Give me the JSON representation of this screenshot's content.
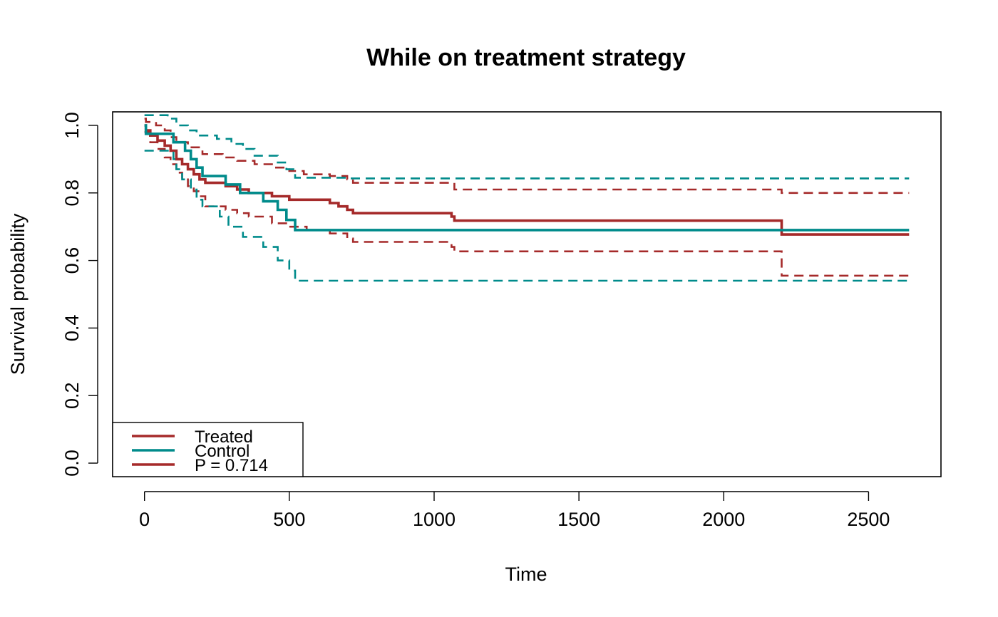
{
  "chart_data": {
    "type": "line",
    "title": "While on treatment strategy",
    "xlabel": "Time",
    "ylabel": "Survival probability",
    "xlim": [
      -110,
      2750
    ],
    "ylim": [
      -0.04,
      1.04
    ],
    "x_ticks": [
      0,
      500,
      1000,
      1500,
      2000,
      2500
    ],
    "y_ticks": [
      0.0,
      0.2,
      0.4,
      0.6,
      0.8,
      1.0
    ],
    "y_tick_labels": [
      "0.0",
      "0.2",
      "0.4",
      "0.6",
      "0.8",
      "1.0"
    ],
    "grid": false,
    "legend_position": "bottom-left",
    "legend": [
      "Treated",
      "Control",
      "P = 0.714"
    ],
    "colors": {
      "treated": "#A52A2A",
      "control": "#008B8B"
    },
    "series": [
      {
        "name": "Treated",
        "color": "#A52A2A",
        "style": "solid",
        "steps": [
          [
            0,
            1.0
          ],
          [
            5,
            0.985
          ],
          [
            20,
            0.97
          ],
          [
            45,
            0.955
          ],
          [
            70,
            0.94
          ],
          [
            90,
            0.925
          ],
          [
            110,
            0.9
          ],
          [
            130,
            0.885
          ],
          [
            150,
            0.87
          ],
          [
            170,
            0.855
          ],
          [
            190,
            0.84
          ],
          [
            210,
            0.83
          ],
          [
            280,
            0.82
          ],
          [
            320,
            0.81
          ],
          [
            360,
            0.8
          ],
          [
            440,
            0.79
          ],
          [
            500,
            0.78
          ],
          [
            640,
            0.77
          ],
          [
            670,
            0.76
          ],
          [
            700,
            0.75
          ],
          [
            720,
            0.74
          ],
          [
            1060,
            0.73
          ],
          [
            1070,
            0.718
          ],
          [
            2200,
            0.677
          ],
          [
            2640,
            0.677
          ]
        ]
      },
      {
        "name": "Treated upper",
        "color": "#A52A2A",
        "style": "dashed",
        "steps": [
          [
            0,
            1.02
          ],
          [
            5,
            1.01
          ],
          [
            40,
            1.0
          ],
          [
            70,
            0.985
          ],
          [
            90,
            0.965
          ],
          [
            110,
            0.95
          ],
          [
            150,
            0.935
          ],
          [
            200,
            0.915
          ],
          [
            270,
            0.905
          ],
          [
            320,
            0.895
          ],
          [
            380,
            0.885
          ],
          [
            440,
            0.875
          ],
          [
            500,
            0.865
          ],
          [
            550,
            0.855
          ],
          [
            640,
            0.85
          ],
          [
            700,
            0.84
          ],
          [
            720,
            0.83
          ],
          [
            1070,
            0.81
          ],
          [
            2200,
            0.8
          ],
          [
            2640,
            0.8
          ]
        ]
      },
      {
        "name": "Treated lower",
        "color": "#A52A2A",
        "style": "dashed",
        "steps": [
          [
            0,
            0.98
          ],
          [
            20,
            0.95
          ],
          [
            45,
            0.93
          ],
          [
            70,
            0.905
          ],
          [
            90,
            0.885
          ],
          [
            110,
            0.86
          ],
          [
            130,
            0.84
          ],
          [
            150,
            0.82
          ],
          [
            170,
            0.805
          ],
          [
            190,
            0.79
          ],
          [
            210,
            0.76
          ],
          [
            280,
            0.75
          ],
          [
            320,
            0.74
          ],
          [
            360,
            0.73
          ],
          [
            440,
            0.71
          ],
          [
            500,
            0.7
          ],
          [
            560,
            0.69
          ],
          [
            640,
            0.68
          ],
          [
            700,
            0.665
          ],
          [
            720,
            0.655
          ],
          [
            1060,
            0.64
          ],
          [
            1070,
            0.627
          ],
          [
            2200,
            0.555
          ],
          [
            2640,
            0.555
          ]
        ]
      },
      {
        "name": "Control",
        "color": "#008B8B",
        "style": "solid",
        "steps": [
          [
            0,
            1.0
          ],
          [
            5,
            0.975
          ],
          [
            100,
            0.95
          ],
          [
            140,
            0.925
          ],
          [
            160,
            0.9
          ],
          [
            180,
            0.875
          ],
          [
            200,
            0.85
          ],
          [
            280,
            0.825
          ],
          [
            330,
            0.8
          ],
          [
            410,
            0.775
          ],
          [
            460,
            0.75
          ],
          [
            490,
            0.72
          ],
          [
            520,
            0.69
          ],
          [
            2640,
            0.69
          ]
        ]
      },
      {
        "name": "Control upper",
        "color": "#008B8B",
        "style": "dashed",
        "steps": [
          [
            0,
            1.03
          ],
          [
            80,
            1.02
          ],
          [
            110,
            1.0
          ],
          [
            150,
            0.985
          ],
          [
            180,
            0.97
          ],
          [
            250,
            0.96
          ],
          [
            300,
            0.945
          ],
          [
            340,
            0.93
          ],
          [
            380,
            0.91
          ],
          [
            460,
            0.89
          ],
          [
            490,
            0.87
          ],
          [
            520,
            0.845
          ],
          [
            700,
            0.843
          ],
          [
            2640,
            0.843
          ]
        ]
      },
      {
        "name": "Control lower",
        "color": "#008B8B",
        "style": "dashed",
        "steps": [
          [
            0,
            0.925
          ],
          [
            100,
            0.9
          ],
          [
            110,
            0.87
          ],
          [
            130,
            0.84
          ],
          [
            160,
            0.81
          ],
          [
            180,
            0.78
          ],
          [
            200,
            0.76
          ],
          [
            260,
            0.73
          ],
          [
            290,
            0.7
          ],
          [
            340,
            0.67
          ],
          [
            410,
            0.64
          ],
          [
            460,
            0.6
          ],
          [
            500,
            0.57
          ],
          [
            520,
            0.54
          ],
          [
            2640,
            0.54
          ]
        ]
      }
    ]
  }
}
